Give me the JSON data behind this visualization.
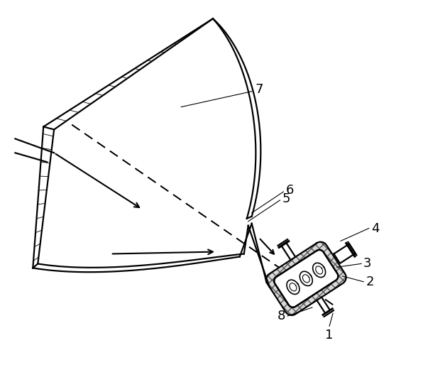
{
  "figsize": [
    5.96,
    5.38
  ],
  "dpi": 100,
  "bg_color": "#ffffff",
  "line_color": "#000000",
  "label_color": "#000000",
  "font_size": 13
}
